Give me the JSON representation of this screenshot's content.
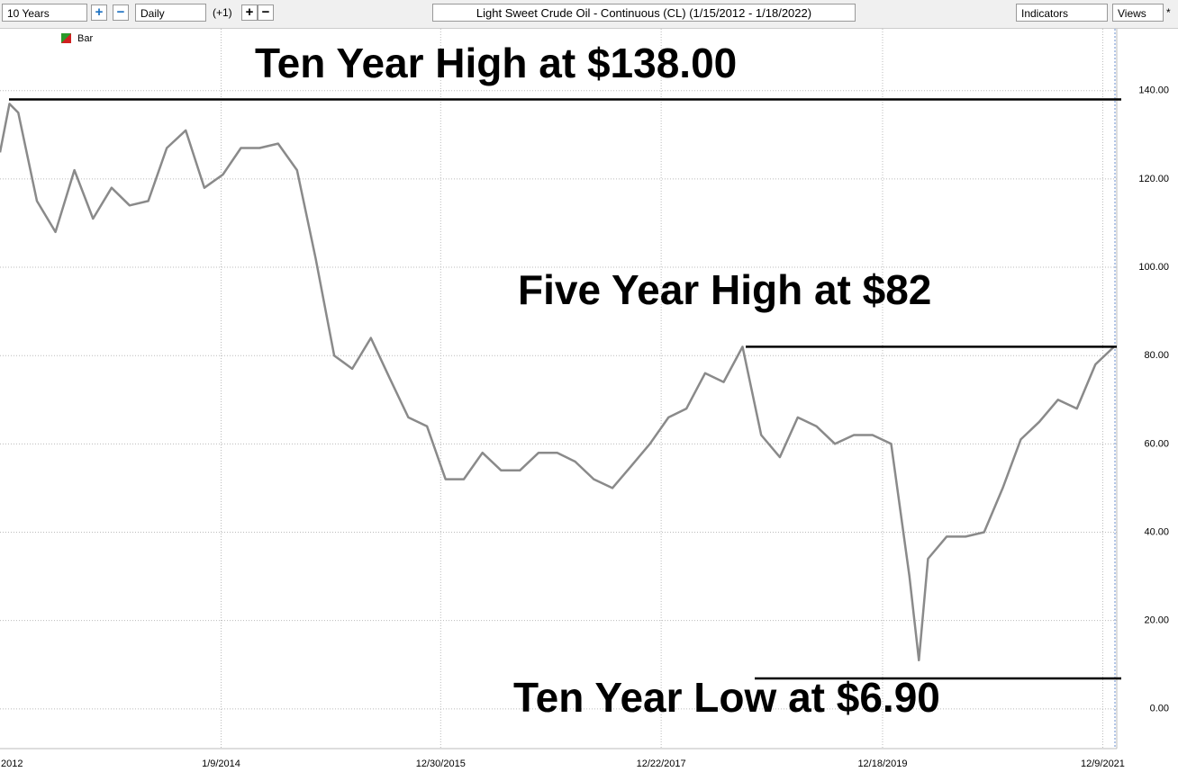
{
  "toolbar": {
    "range": "10 Years",
    "interval": "Daily",
    "offset": "(+1)",
    "indicators": "Indicators",
    "views": "Views",
    "star": "*"
  },
  "chart_data": {
    "type": "line",
    "title": "Light Sweet Crude Oil - Continuous (CL) (1/15/2012 - 1/18/2022)",
    "x": [
      "1/15/2012",
      "2/15/2012",
      "3/15/2012",
      "5/15/2012",
      "7/15/2012",
      "9/15/2012",
      "11/15/2012",
      "1/15/2013",
      "3/15/2013",
      "5/15/2013",
      "7/15/2013",
      "9/15/2013",
      "11/15/2013",
      "1/15/2014",
      "3/15/2014",
      "5/15/2014",
      "7/15/2014",
      "9/15/2014",
      "11/15/2014",
      "1/15/2015",
      "3/15/2015",
      "5/15/2015",
      "7/15/2015",
      "9/15/2015",
      "11/15/2015",
      "1/15/2016",
      "3/15/2016",
      "5/15/2016",
      "7/15/2016",
      "9/15/2016",
      "11/15/2016",
      "1/15/2017",
      "3/15/2017",
      "5/15/2017",
      "7/15/2017",
      "9/15/2017",
      "11/15/2017",
      "1/15/2018",
      "3/15/2018",
      "5/15/2018",
      "7/15/2018",
      "9/15/2018",
      "11/15/2018",
      "1/15/2019",
      "3/15/2019",
      "5/15/2019",
      "7/15/2019",
      "9/15/2019",
      "11/15/2019",
      "1/15/2020",
      "3/15/2020",
      "4/15/2020",
      "5/15/2020",
      "7/15/2020",
      "9/15/2020",
      "11/15/2020",
      "1/15/2021",
      "3/15/2021",
      "5/15/2021",
      "7/15/2021",
      "9/15/2021",
      "11/15/2021",
      "1/15/2022"
    ],
    "series": [
      {
        "name": "Bar",
        "color": "#8a8a8a",
        "values": [
          126,
          137,
          135,
          115,
          108,
          122,
          111,
          118,
          114,
          115,
          127,
          131,
          118,
          121,
          127,
          127,
          128,
          122,
          102,
          80,
          77,
          84,
          75,
          66,
          64,
          52,
          52,
          58,
          54,
          54,
          58,
          58,
          56,
          52,
          50,
          55,
          60,
          66,
          68,
          76,
          74,
          82,
          62,
          57,
          66,
          64,
          60,
          62,
          62,
          60,
          30,
          11,
          34,
          39,
          39,
          40,
          50,
          61,
          65,
          70,
          68,
          78,
          82
        ]
      }
    ],
    "xlim": [
      "1/15/2012",
      "1/18/2022"
    ],
    "xticks": [
      "2012",
      "1/9/2014",
      "12/30/2015",
      "12/22/2017",
      "12/18/2019",
      "12/9/2021"
    ],
    "ylim": [
      -9,
      154
    ],
    "yticks": [
      {
        "value": 0,
        "label": "0.00"
      },
      {
        "value": 20,
        "label": "20.00"
      },
      {
        "value": 40,
        "label": "40.00"
      },
      {
        "value": 60,
        "label": "60.00"
      },
      {
        "value": 80,
        "label": "80.00"
      },
      {
        "value": 100,
        "label": "100.00"
      },
      {
        "value": 120,
        "label": "120.00"
      },
      {
        "value": 140,
        "label": "140.00"
      }
    ],
    "grid": true,
    "annotations": [
      {
        "text": "Ten Year High at $138.00",
        "value": 138
      },
      {
        "text": "Five Year High at $82",
        "value": 82
      },
      {
        "text": "Ten Year Low at $6.90",
        "value": 6.9
      }
    ]
  }
}
